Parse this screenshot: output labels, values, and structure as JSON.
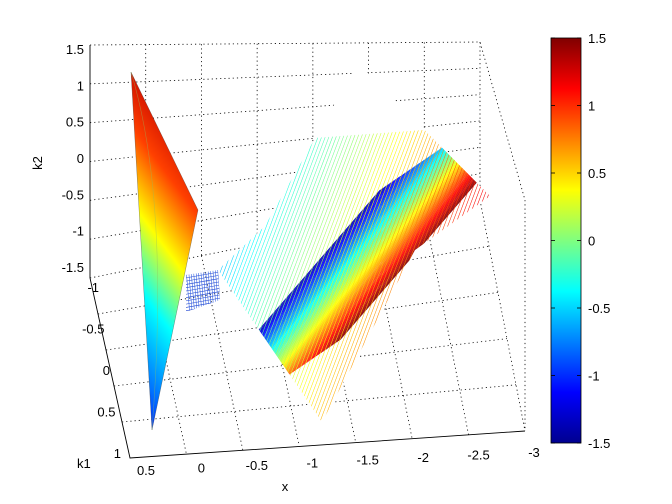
{
  "chart_data": {
    "type": "surface",
    "xlabel": "x",
    "ylabel": "k1",
    "zlabel": "k2",
    "x_ticks": [
      "0.5",
      "0",
      "-0.5",
      "-1",
      "-1.5",
      "-2",
      "-2.5",
      "-3"
    ],
    "k1_ticks": [
      "-1",
      "-0.5",
      "0",
      "0.5",
      "1"
    ],
    "k2_ticks": [
      "1.5",
      "1",
      "0.5",
      "0",
      "-0.5",
      "-1",
      "-1.5"
    ],
    "colorbar": {
      "colormap": "jet",
      "range": [
        -1.5,
        1.5
      ],
      "ticks": [
        "1.5",
        "1",
        "0.5",
        "0",
        "-0.5",
        "-1",
        "-1.5"
      ]
    },
    "grid": true,
    "surfaces": [
      {
        "name": "",
        "style": "smooth",
        "x_range": [
          0.5,
          -0.2
        ],
        "k1_range": [
          -1,
          1
        ],
        "k2_range": [
          -1.5,
          1.5
        ]
      },
      {
        "name": "",
        "style": "mesh",
        "x_range": [
          -0.2,
          -3
        ],
        "k1_range": [
          -1,
          1
        ],
        "k2_range": [
          -1.5,
          1.5
        ]
      }
    ]
  }
}
